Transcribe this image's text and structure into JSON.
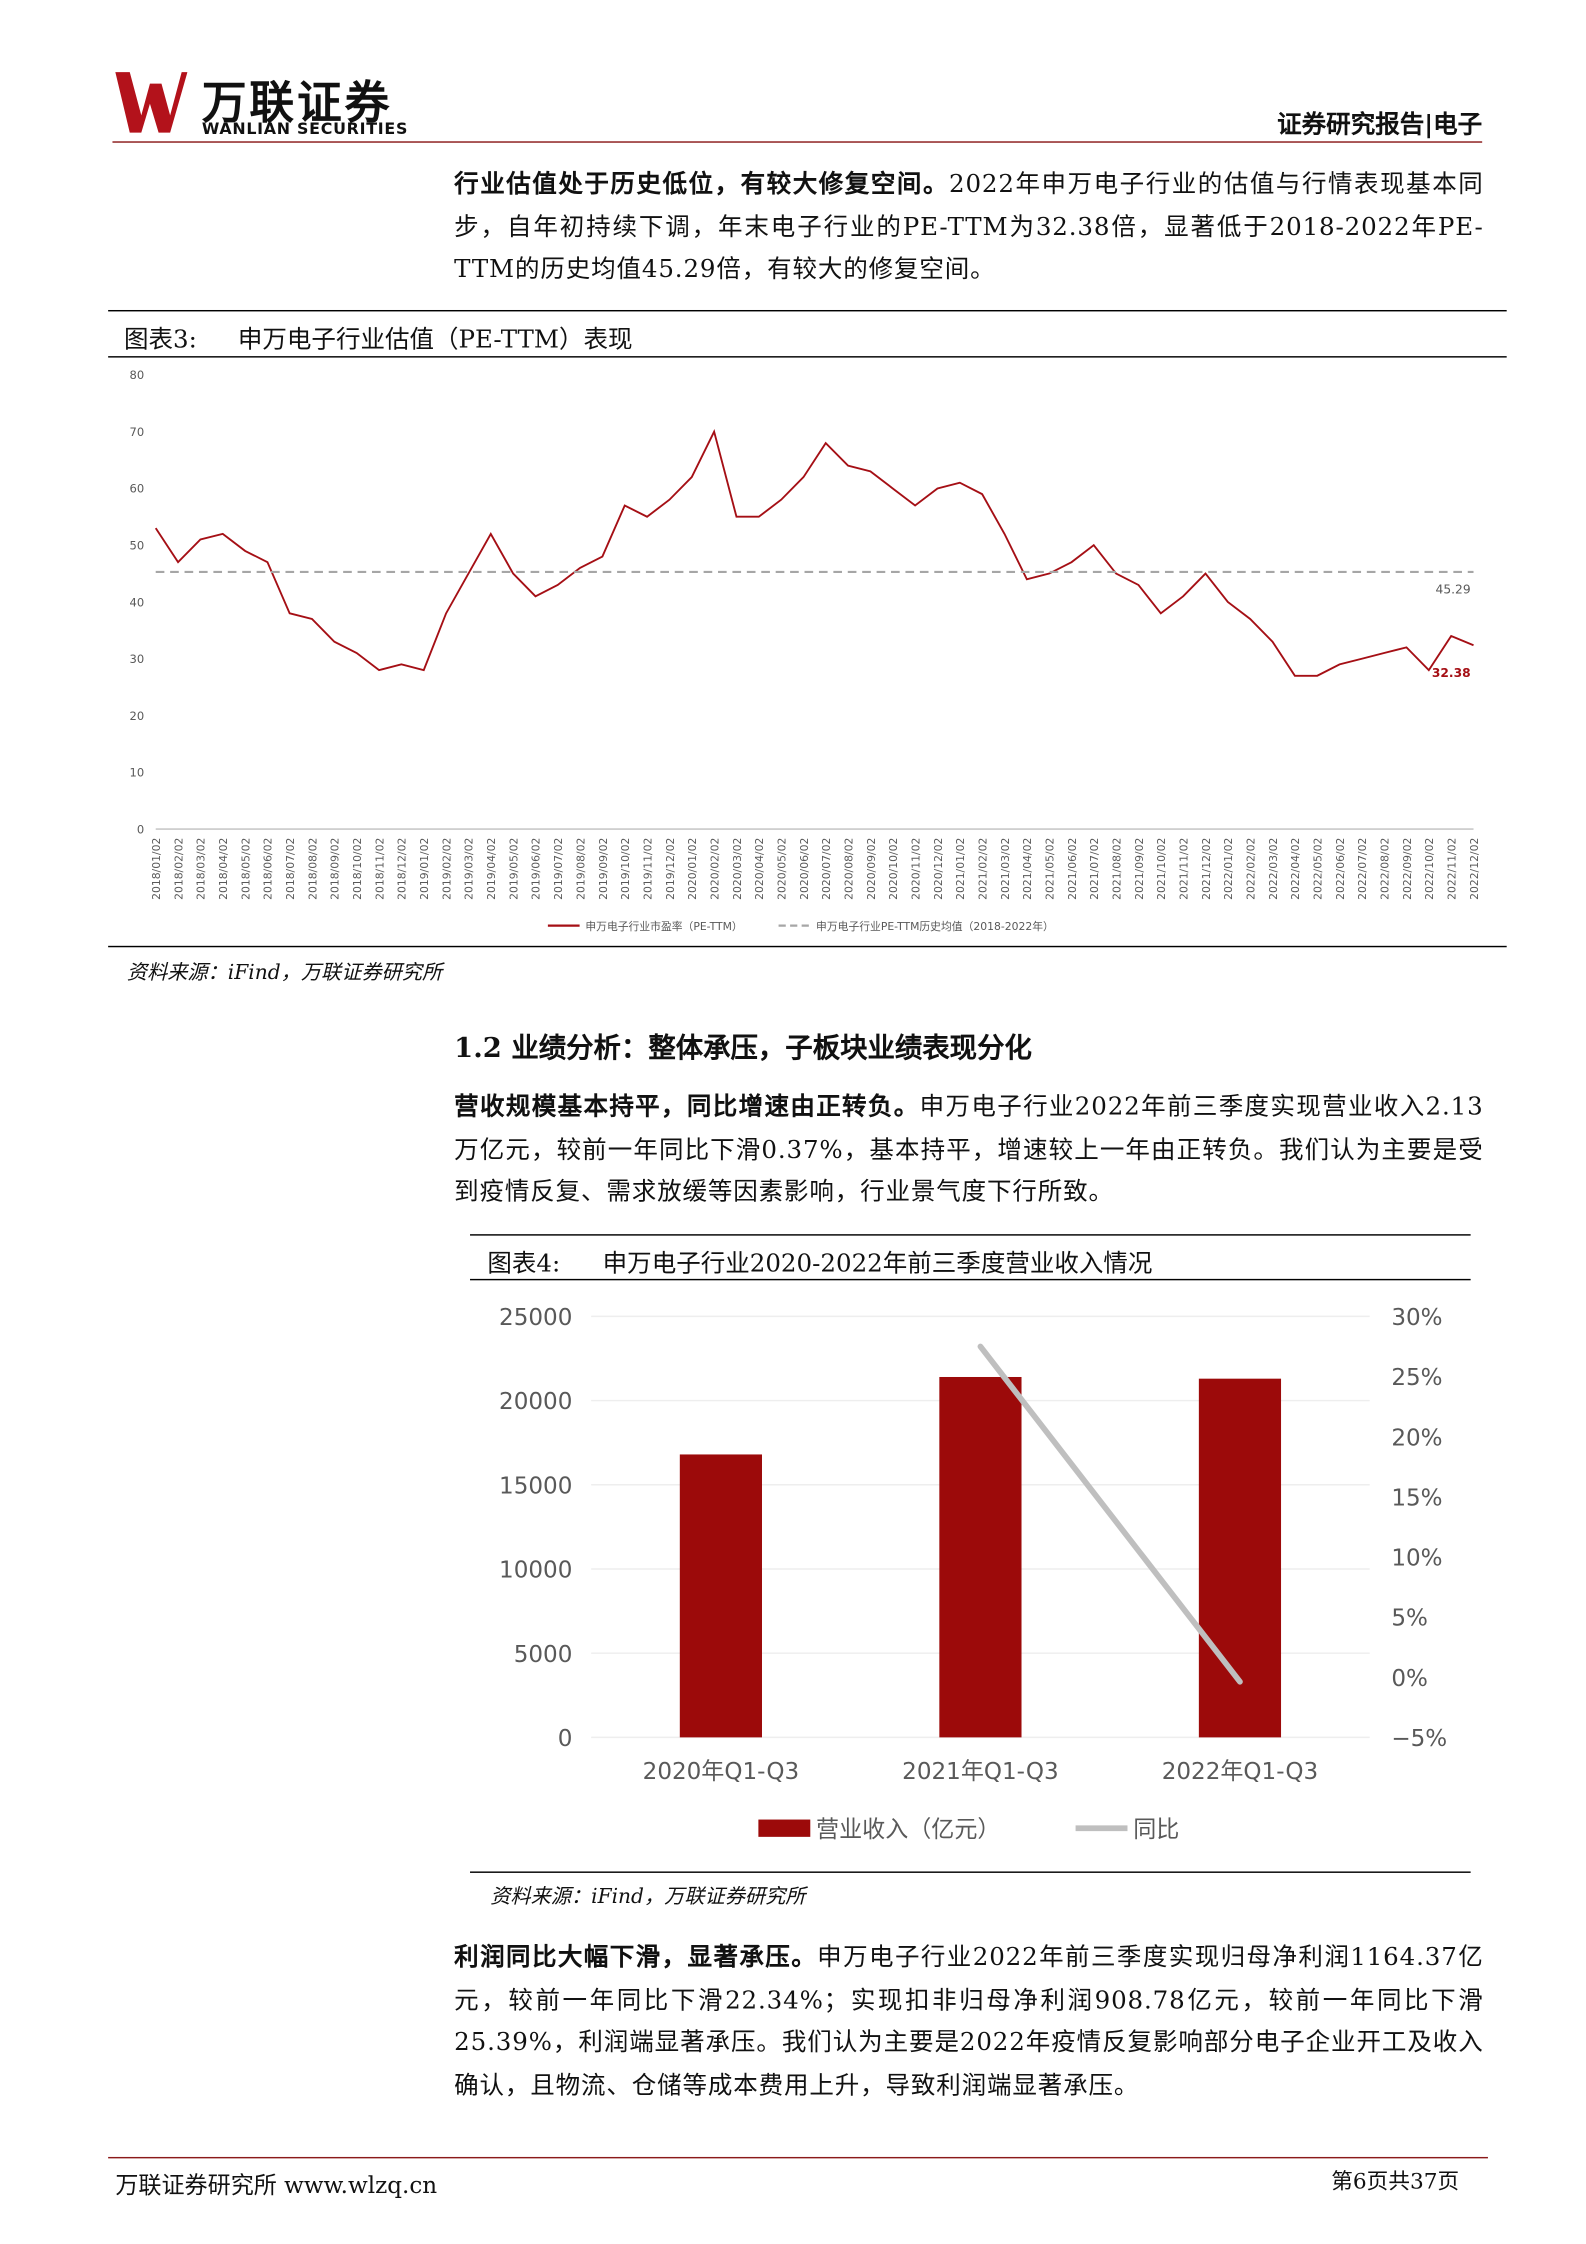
{
  "header": {
    "logo_cn": "万联证券",
    "logo_en": "WANLIAN SECURITIES",
    "report_type": "证券研究报告|电子"
  },
  "paragraphs": [
    {
      "lead": "行业估值处于历史低位，有较大修复空间。",
      "text": "2022年申万电子行业的估值与行情表现基本同步，自年初持续下调，年末电子行业的PE-TTM为32.38倍，显著低于2018-2022年PE-TTM的历史均值45.29倍，有较大的修复空间。"
    },
    {
      "lead": "营收规模基本持平，同比增速由正转负。",
      "text": "申万电子行业2022年前三季度实现营业收入2.13万亿元，较前一年同比下滑0.37%，基本持平，增速较上一年由正转负。我们认为主要是受到疫情反复、需求放缓等因素影响，行业景气度下行所致。"
    },
    {
      "lead": "利润同比大幅下滑，显著承压。",
      "text": "申万电子行业2022年前三季度实现归母净利润1164.37亿元，较前一年同比下滑22.34%；实现扣非归母净利润908.78亿元，较前一年同比下滑25.39%，利润端显著承压。我们认为主要是2022年疫情反复影响部分电子企业开工及收入确认，且物流、仓储等成本费用上升，导致利润端显著承压。"
    }
  ],
  "section_heading": "1.2 业绩分析：整体承压，子板块业绩表现分化",
  "figure3": {
    "label": "图表3:",
    "caption": "申万电子行业估值（PE-TTM）表现",
    "source": "资料来源：iFind，万联证券研究所",
    "chart": {
      "type": "line",
      "categories": [
        "2018/01/02",
        "2018/02/02",
        "2018/03/02",
        "2018/04/02",
        "2018/05/02",
        "2018/06/02",
        "2018/07/02",
        "2018/08/02",
        "2018/09/02",
        "2018/10/02",
        "2018/11/02",
        "2018/12/02",
        "2019/01/02",
        "2019/02/02",
        "2019/03/02",
        "2019/04/02",
        "2019/05/02",
        "2019/06/02",
        "2019/07/02",
        "2019/08/02",
        "2019/09/02",
        "2019/10/02",
        "2019/11/02",
        "2019/12/02",
        "2020/01/02",
        "2020/02/02",
        "2020/03/02",
        "2020/04/02",
        "2020/05/02",
        "2020/06/02",
        "2020/07/02",
        "2020/08/02",
        "2020/09/02",
        "2020/10/02",
        "2020/11/02",
        "2020/12/02",
        "2021/01/02",
        "2021/02/02",
        "2021/03/02",
        "2021/04/02",
        "2021/05/02",
        "2021/06/02",
        "2021/07/02",
        "2021/08/02",
        "2021/09/02",
        "2021/10/02",
        "2021/11/02",
        "2021/12/02",
        "2022/01/02",
        "2022/02/02",
        "2022/03/02",
        "2022/04/02",
        "2022/05/02",
        "2022/06/02",
        "2022/07/02",
        "2022/08/02",
        "2022/09/02",
        "2022/10/02",
        "2022/11/02",
        "2022/12/02"
      ],
      "series": [
        {
          "name": "申万电子行业市盈率（PE-TTM）",
          "color": "#a50f15",
          "dash": false,
          "values": [
            53,
            47,
            51,
            52,
            49,
            47,
            38,
            37,
            33,
            31,
            28,
            29,
            28,
            38,
            45,
            52,
            45,
            41,
            43,
            46,
            48,
            57,
            55,
            58,
            62,
            70,
            55,
            55,
            58,
            62,
            68,
            64,
            63,
            60,
            57,
            60,
            61,
            59,
            52,
            44,
            45,
            47,
            50,
            45,
            43,
            38,
            41,
            45,
            40,
            37,
            33,
            27,
            27,
            29,
            30,
            31,
            32,
            28,
            34,
            32.38
          ]
        },
        {
          "name": "申万电子行业PE-TTM历史均值（2018-2022年）",
          "color": "#a6a6a6",
          "dash": true,
          "values": [
            45.29,
            45.29,
            45.29,
            45.29,
            45.29,
            45.29,
            45.29,
            45.29,
            45.29,
            45.29,
            45.29,
            45.29,
            45.29,
            45.29,
            45.29,
            45.29,
            45.29,
            45.29,
            45.29,
            45.29,
            45.29,
            45.29,
            45.29,
            45.29,
            45.29,
            45.29,
            45.29,
            45.29,
            45.29,
            45.29,
            45.29,
            45.29,
            45.29,
            45.29,
            45.29,
            45.29,
            45.29,
            45.29,
            45.29,
            45.29,
            45.29,
            45.29,
            45.29,
            45.29,
            45.29,
            45.29,
            45.29,
            45.29,
            45.29,
            45.29,
            45.29,
            45.29,
            45.29,
            45.29,
            45.29,
            45.29,
            45.29,
            45.29,
            45.29,
            45.29
          ]
        }
      ],
      "ylim": [
        0,
        80
      ],
      "yticks": [
        0,
        10,
        20,
        30,
        40,
        50,
        60,
        70,
        80
      ],
      "grid": false
    }
  },
  "figure4": {
    "label": "图表4:",
    "caption": "申万电子行业2020-2022年前三季度营业收入情况",
    "source": "资料来源：iFind，万联证券研究所",
    "chart": {
      "type": "bar_line",
      "categories": [
        "2020年Q1-Q3",
        "2021年Q1-Q3",
        "2022年Q1-Q3"
      ],
      "series": [
        {
          "name": "营业收入（亿元）",
          "color": "#9c0a0a",
          "kind": "bar",
          "values": [
            16800,
            21400,
            21300
          ]
        },
        {
          "name": "同比",
          "color": "#bfbfbf",
          "kind": "line",
          "axis": "y2",
          "values": [
            null,
            27.5,
            -0.37
          ]
        }
      ],
      "ylim": [
        0,
        25000
      ],
      "yticks": [
        0,
        5000,
        10000,
        15000,
        20000,
        25000
      ],
      "y2lim": [
        -5,
        30
      ],
      "y2ticks": [
        {
          "value": -5,
          "label": "−5%"
        },
        {
          "value": 0,
          "label": "0%"
        },
        {
          "value": 5,
          "label": "5%"
        },
        {
          "value": 10,
          "label": "10%"
        },
        {
          "value": 15,
          "label": "15%"
        },
        {
          "value": 20,
          "label": "20%"
        },
        {
          "value": 25,
          "label": "25%"
        },
        {
          "value": 30,
          "label": "30%"
        }
      ],
      "grid": true
    }
  },
  "footer": {
    "left": "万联证券研究所 www.wlzq.cn",
    "right": "第6页共37页"
  }
}
